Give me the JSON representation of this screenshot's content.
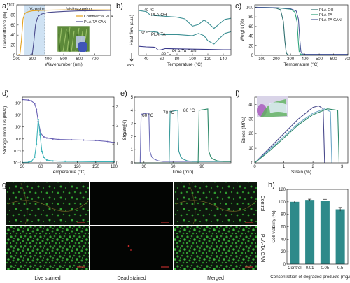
{
  "chart_data": [
    {
      "panel": "a)",
      "type": "line",
      "xlabel": "Wavenumber (nm)",
      "ylabel": "Transmittance (%)",
      "xlim": [
        200,
        800
      ],
      "ylim": [
        0,
        100
      ],
      "xticks": [
        "200",
        "300",
        "400",
        "500",
        "600",
        "700"
      ],
      "yticks": [
        "0",
        "20",
        "40",
        "60",
        "80",
        "100"
      ],
      "regions": [
        "UV-region",
        "Visible-region"
      ],
      "series": [
        {
          "name": "Commercial PLA",
          "color": "#e3a11d",
          "x": [
            200,
            220,
            230,
            240,
            250,
            260,
            280,
            300,
            350,
            400,
            500,
            600,
            700,
            800
          ],
          "y": [
            0,
            2,
            30,
            72,
            82,
            85,
            87,
            88,
            89,
            89.5,
            90,
            90,
            90,
            90
          ]
        },
        {
          "name": "PLA-TA CAN",
          "color": "#4a4a8c",
          "x": [
            200,
            280,
            300,
            310,
            320,
            330,
            340,
            360,
            400,
            450,
            500,
            600,
            700,
            800
          ],
          "y": [
            0,
            0,
            3,
            30,
            60,
            72,
            78,
            82,
            85,
            86,
            87,
            88,
            88.5,
            89
          ]
        }
      ]
    },
    {
      "panel": "b)",
      "type": "line",
      "xlabel": "Temperature (°C)",
      "ylabel": "Heat flow (a.u.)",
      "xlim": [
        30,
        150
      ],
      "xticks": [
        "40",
        "60",
        "80",
        "100",
        "120",
        "140"
      ],
      "exo_label": "exo",
      "series": [
        {
          "name": "PLA-OH",
          "color": "#3b8f93",
          "tg": "40 °C",
          "x": [
            30,
            35,
            40,
            45,
            50,
            60,
            70,
            80,
            90,
            100,
            108,
            115,
            120,
            128,
            135,
            142,
            150
          ],
          "y": [
            8.0,
            7.9,
            7.8,
            7.2,
            7.1,
            7.0,
            6.9,
            6.8,
            6.5,
            5.2,
            5.5,
            6.3,
            5.8,
            4.8,
            5.6,
            6.4,
            6.6
          ]
        },
        {
          "name": "PLA-TA",
          "color": "#3b8f93",
          "tg": "57 °C",
          "x": [
            30,
            40,
            50,
            55,
            57,
            60,
            70,
            80,
            90,
            100,
            108,
            115,
            120,
            128,
            135,
            142,
            150
          ],
          "y": [
            4.4,
            4.3,
            4.2,
            4.1,
            3.8,
            3.7,
            3.7,
            3.7,
            3.6,
            3.5,
            3.9,
            3.5,
            2.6,
            2.0,
            3.0,
            3.9,
            4.2
          ]
        },
        {
          "name": "PLA-TA CAN",
          "color": "#3a3a8c",
          "tg": "55 °C",
          "x": [
            30,
            40,
            50,
            53,
            55,
            58,
            65,
            80,
            100,
            120,
            140,
            150
          ],
          "y": [
            1.6,
            1.5,
            1.45,
            1.3,
            0.95,
            0.95,
            1.2,
            1.15,
            1.1,
            1.05,
            1.0,
            1.0
          ]
        }
      ]
    },
    {
      "panel": "c)",
      "type": "line",
      "xlabel": "Temperature (°C)",
      "ylabel": "Weight (%)",
      "xlim": [
        50,
        700
      ],
      "ylim": [
        0,
        105
      ],
      "xticks": [
        "100",
        "200",
        "300",
        "400",
        "500",
        "600",
        "700"
      ],
      "yticks": [
        "0",
        "20",
        "40",
        "60",
        "80",
        "100"
      ],
      "series": [
        {
          "name": "PLA-OH",
          "color": "#2f6f6f",
          "x": [
            50,
            150,
            200,
            230,
            250,
            260,
            270,
            280,
            300,
            700
          ],
          "y": [
            100,
            99,
            98,
            95,
            70,
            30,
            5,
            1,
            0.5,
            0.5
          ]
        },
        {
          "name": "PLA-TA",
          "color": "#2ea37b",
          "x": [
            50,
            200,
            300,
            330,
            345,
            355,
            360,
            370,
            400,
            700
          ],
          "y": [
            100,
            99,
            96,
            90,
            70,
            25,
            8,
            2,
            1,
            1
          ]
        },
        {
          "name": "PLA-TA CAN",
          "color": "#4a5a9a",
          "x": [
            50,
            200,
            300,
            340,
            355,
            365,
            372,
            380,
            400,
            700
          ],
          "y": [
            100,
            99,
            97,
            92,
            75,
            30,
            8,
            3,
            2,
            2
          ]
        }
      ]
    },
    {
      "panel": "d)",
      "type": "line",
      "xlabel": "Temperature (°C)",
      "ylabel": "Storage modulus (MPa)",
      "y2label": "Tan δ",
      "xlim": [
        30,
        180
      ],
      "xticks": [
        "30",
        "60",
        "90",
        "120",
        "150",
        "180"
      ],
      "yticks": [
        "10⁻²",
        "10⁻¹",
        "10⁰",
        "10¹",
        "10²",
        "10³"
      ],
      "y2ticks": [
        "0",
        "1",
        "2",
        "3"
      ],
      "series": [
        {
          "name": "Storage modulus",
          "color": "#6b63b5",
          "x": [
            30,
            40,
            45,
            50,
            53,
            56,
            60,
            65,
            70,
            80,
            90,
            110,
            130,
            150,
            170,
            180
          ],
          "y": [
            2000,
            1800,
            1500,
            900,
            300,
            30,
            3,
            1.5,
            1.2,
            1.0,
            0.9,
            0.85,
            0.8,
            0.75,
            0.6,
            0.5
          ]
        },
        {
          "name": "Tan δ",
          "color": "#3bb3b8",
          "x": [
            30,
            40,
            45,
            50,
            53,
            56,
            59,
            62,
            65,
            70,
            80,
            100,
            120,
            150,
            180
          ],
          "y": [
            0.02,
            0.03,
            0.08,
            0.3,
            1.0,
            2.3,
            1.5,
            0.6,
            0.3,
            0.15,
            0.1,
            0.08,
            0.07,
            0.06,
            0.06
          ]
        }
      ]
    },
    {
      "panel": "e)",
      "type": "line",
      "xlabel": "Time (min)",
      "ylabel": "Strain (%)",
      "xlim": [
        20,
        120
      ],
      "ylim": [
        0,
        5
      ],
      "xticks": [
        "30",
        "60",
        "90"
      ],
      "yticks": [
        "0",
        "1",
        "2",
        "3",
        "4",
        "5"
      ],
      "series": [
        {
          "name": "60 °C",
          "color": "#6e6eb8",
          "x": [
            20,
            26,
            27,
            35,
            36,
            38,
            40,
            45,
            50,
            120
          ],
          "y": [
            0,
            0,
            3.7,
            3.8,
            0.9,
            0.45,
            0.3,
            0.15,
            0.1,
            0.1
          ]
        },
        {
          "name": "70 °C",
          "color": "#3b9c9c",
          "x": [
            20,
            56,
            57,
            65,
            66,
            68,
            70,
            75,
            80,
            120
          ],
          "y": [
            0,
            0,
            3.9,
            4.0,
            0.9,
            0.45,
            0.3,
            0.15,
            0.1,
            0.1
          ]
        },
        {
          "name": "80 °C",
          "color": "#2e8a6a",
          "x": [
            20,
            86,
            87,
            96,
            97,
            99,
            101,
            106,
            112,
            120
          ],
          "y": [
            0,
            0,
            4.0,
            4.1,
            0.9,
            0.45,
            0.3,
            0.15,
            0.1,
            0.1
          ]
        }
      ]
    },
    {
      "panel": "f)",
      "type": "line",
      "xlabel": "Strain (%)",
      "ylabel": "Stress (MPa)",
      "xlim": [
        0,
        3.2
      ],
      "ylim": [
        0,
        45
      ],
      "xticks": [
        "0",
        "1",
        "2",
        "3"
      ],
      "yticks": [
        "0",
        "10",
        "20",
        "30",
        "40"
      ],
      "series": [
        {
          "color": "#4a4a8c",
          "x": [
            0,
            0.5,
            1.0,
            1.5,
            2.0,
            2.2,
            2.35,
            2.4
          ],
          "y": [
            0,
            10,
            20,
            30,
            38,
            39,
            37,
            0
          ]
        },
        {
          "color": "#6fa8c8",
          "x": [
            0,
            0.5,
            1.0,
            1.5,
            2.0,
            2.4,
            2.6,
            2.65
          ],
          "y": [
            0,
            9,
            18,
            27,
            34,
            37,
            35,
            0
          ]
        },
        {
          "color": "#2e8a6a",
          "x": [
            0,
            0.5,
            1.0,
            1.5,
            2.0,
            2.5,
            2.85,
            2.9
          ],
          "y": [
            0,
            8,
            17,
            26,
            33,
            37,
            36,
            0
          ]
        }
      ]
    },
    {
      "panel": "h)",
      "type": "bar",
      "xlabel": "Concentration of degraded products (mg/ml)",
      "ylabel": "Cell viability (%)",
      "ylim": [
        0,
        120
      ],
      "yticks": [
        "0",
        "20",
        "40",
        "60",
        "80",
        "100",
        "120"
      ],
      "categories": [
        "Control",
        "0.01",
        "0.05",
        "0.5"
      ],
      "values": [
        100,
        103,
        102,
        88
      ],
      "errors": [
        1.5,
        1.2,
        2,
        3
      ]
    }
  ],
  "panel_g": {
    "label": "g)",
    "columns": [
      "Live stained",
      "Dead stained",
      "Merged"
    ],
    "rows": [
      "Control",
      "PLA-TA CAN"
    ]
  },
  "colors": {
    "uv_region": "#cfe2f3",
    "teal_bar": "#2e8a8a",
    "live_cells": "#2f9a2f",
    "image_bg": "#0d170d"
  }
}
